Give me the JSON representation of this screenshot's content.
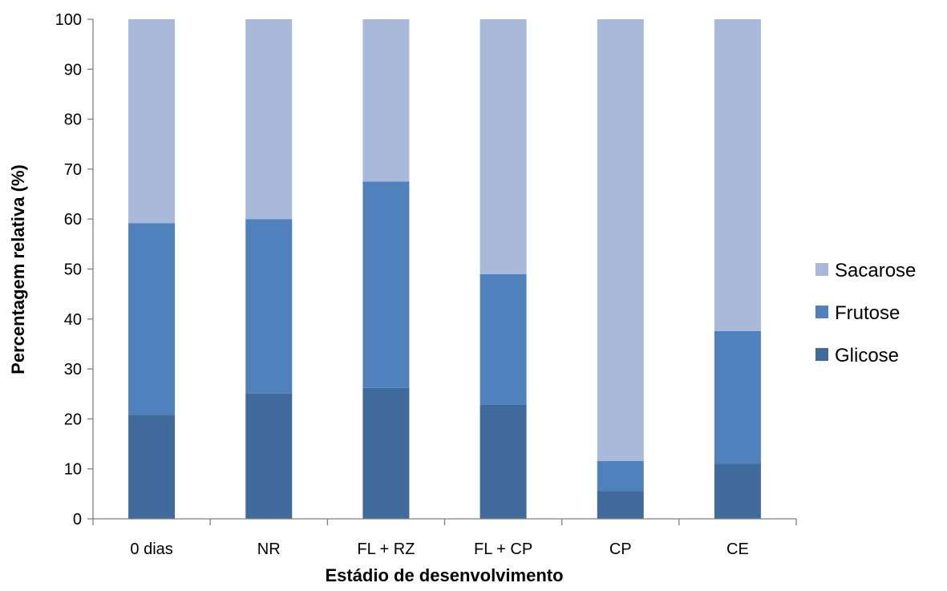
{
  "chart_data": {
    "type": "bar",
    "stacked": true,
    "categories": [
      "0 dias",
      "NR",
      "FL + RZ",
      "FL + CP",
      "CP",
      "CE"
    ],
    "series": [
      {
        "name": "Glicose",
        "color": "#406A9C",
        "values": [
          20.8,
          25.1,
          26.2,
          22.8,
          5.6,
          11.0
        ]
      },
      {
        "name": "Frutose",
        "color": "#4F81BD",
        "values": [
          38.4,
          34.9,
          41.3,
          26.2,
          6.0,
          26.6
        ]
      },
      {
        "name": "Sacarose",
        "color": "#A9B9D9",
        "values": [
          40.8,
          40.0,
          32.5,
          51.0,
          88.4,
          62.4
        ]
      }
    ],
    "xlabel": "Estádio de desenvolvimento",
    "ylabel": "Percentagem relativa (%)",
    "ylim": [
      0,
      100
    ],
    "yticks": [
      0,
      10,
      20,
      30,
      40,
      50,
      60,
      70,
      80,
      90,
      100
    ],
    "grid": false,
    "legend": {
      "position": "right",
      "order": [
        "Sacarose",
        "Frutose",
        "Glicose"
      ]
    }
  }
}
